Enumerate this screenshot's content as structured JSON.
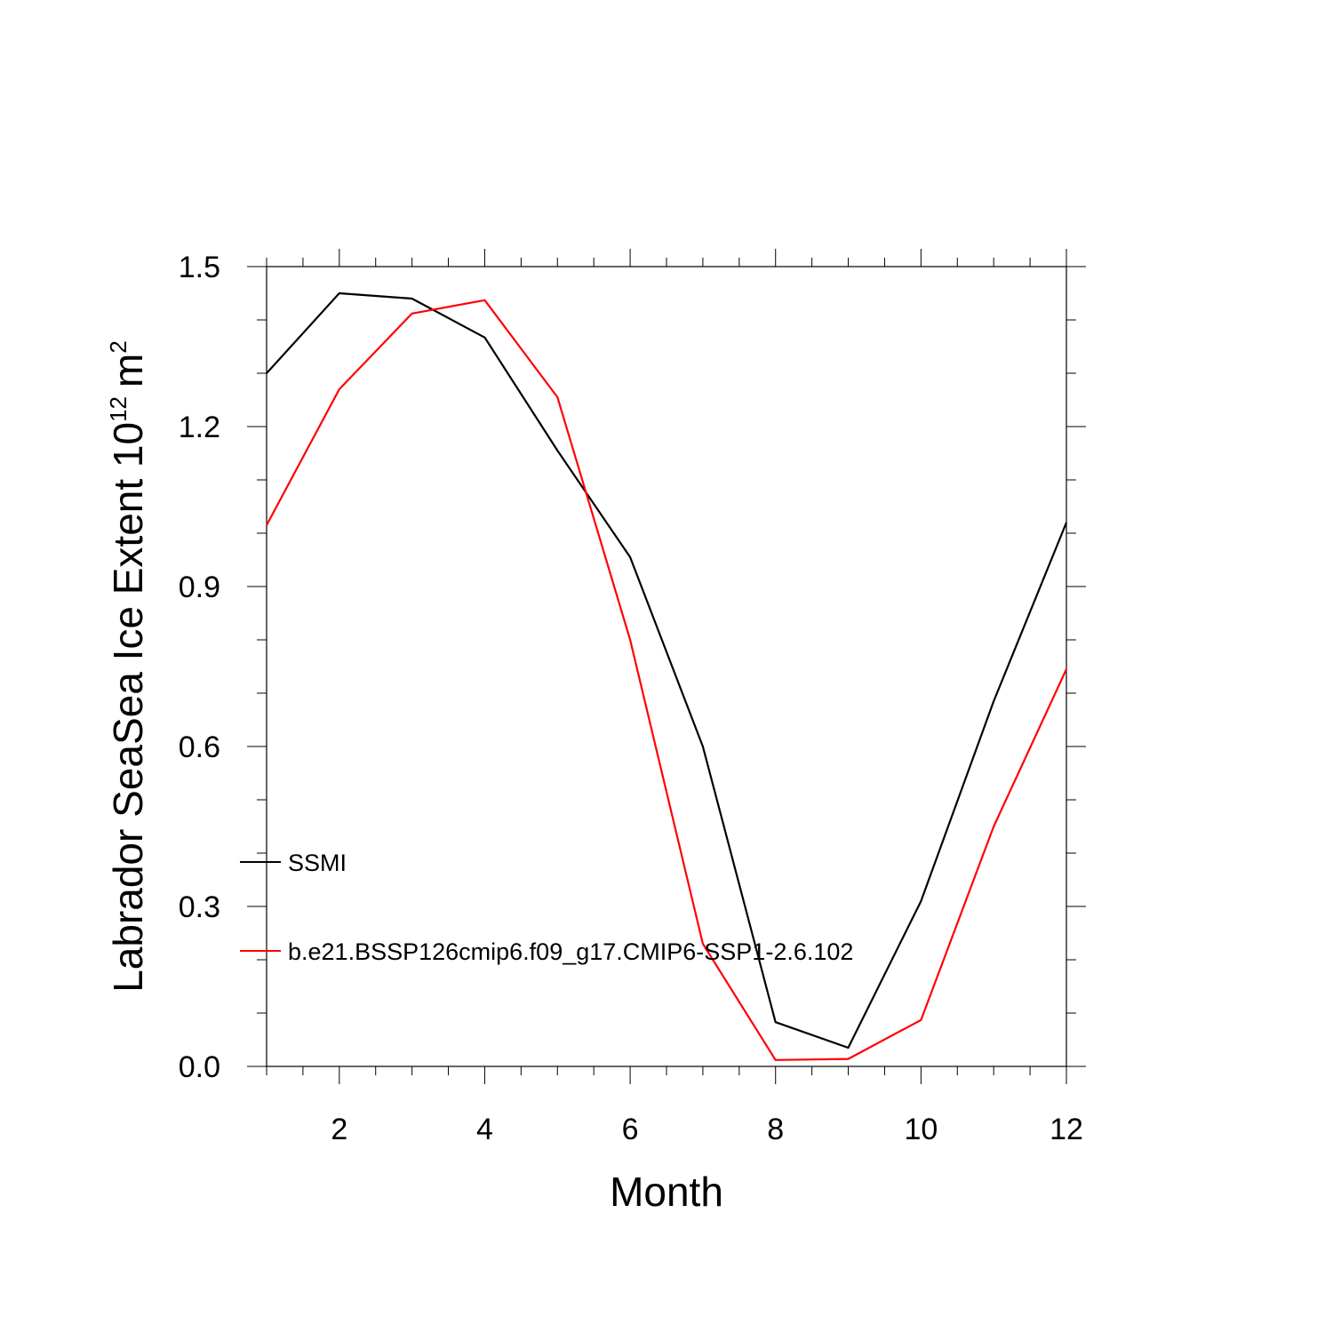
{
  "chart_data": {
    "type": "line",
    "title": "",
    "xlabel": "Month",
    "ylabel_main": "Labrador SeaSea Ice Extent 10",
    "ylabel_exp": "12",
    "ylabel_unit": "m",
    "ylabel_unit_exp": "2",
    "xlim": [
      1,
      12
    ],
    "ylim": [
      0.0,
      1.5
    ],
    "x": [
      1,
      2,
      3,
      4,
      5,
      6,
      7,
      8,
      9,
      10,
      11,
      12
    ],
    "x_ticks": [
      "2",
      "4",
      "6",
      "8",
      "10",
      "12"
    ],
    "y_ticks": [
      "0.0",
      "0.3",
      "0.6",
      "0.9",
      "1.2",
      "1.5"
    ],
    "grid": false,
    "legend_position": "left, inside plot",
    "series": [
      {
        "name": "SSMI",
        "color": "#000000",
        "values": [
          1.3,
          1.45,
          1.44,
          1.367,
          1.155,
          0.955,
          0.6,
          0.083,
          0.035,
          0.31,
          0.685,
          1.02
        ]
      },
      {
        "name": "b.e21.BSSP126cmip6.f09_g17.CMIP6-SSP1-2.6.102",
        "color": "#ff0000",
        "values": [
          1.015,
          1.27,
          1.412,
          1.437,
          1.255,
          0.8,
          0.23,
          0.012,
          0.014,
          0.087,
          0.45,
          0.745
        ]
      }
    ]
  }
}
